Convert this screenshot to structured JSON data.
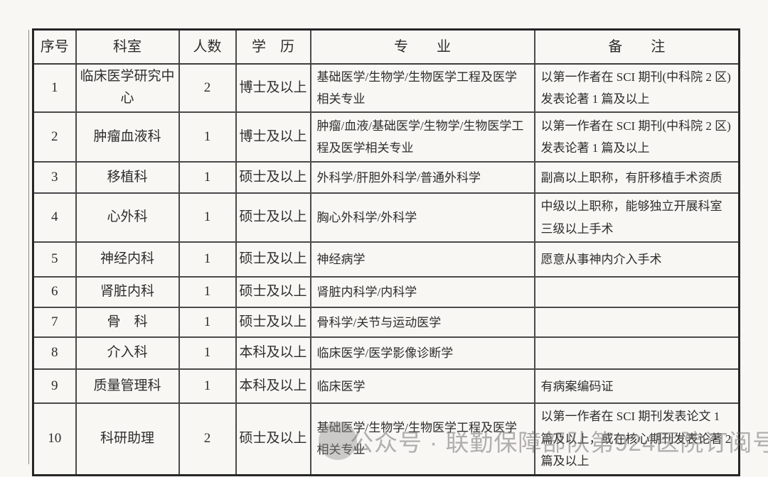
{
  "colors": {
    "paper": "#f9f7f4",
    "table_outer_border": "#262626",
    "grid_line": "#4a4a4a",
    "text": "#2e2d2b",
    "watermark_gray": "#ababab"
  },
  "table": {
    "columns": [
      {
        "key": "index",
        "label": "序号"
      },
      {
        "key": "department",
        "label": "科室"
      },
      {
        "key": "count",
        "label": "人数"
      },
      {
        "key": "education",
        "label": "学　历"
      },
      {
        "key": "major",
        "label": "专　　业"
      },
      {
        "key": "remark",
        "label": "备　　注"
      }
    ],
    "rows": [
      {
        "index": "1",
        "department": "临床医学研究中心",
        "count": "2",
        "education": "博士及以上",
        "major": "基础医学/生物学/生物医学工程及医学相关专业",
        "remark": "以第一作者在 SCI 期刊(中科院 2 区)发表论著 1 篇及以上"
      },
      {
        "index": "2",
        "department": "肿瘤血液科",
        "count": "1",
        "education": "博士及以上",
        "major": "肿瘤/血液/基础医学/生物学/生物医学工程及医学相关专业",
        "remark": "以第一作者在 SCI 期刊(中科院 2 区)发表论著 1 篇及以上"
      },
      {
        "index": "3",
        "department": "移植科",
        "count": "1",
        "education": "硕士及以上",
        "major": "外科学/肝胆外科学/普通外科学",
        "remark": "副高以上职称，有肝移植手术资质"
      },
      {
        "index": "4",
        "department": "心外科",
        "count": "1",
        "education": "硕士及以上",
        "major": "胸心外科学/外科学",
        "remark": "中级以上职称，能够独立开展科室三级以上手术"
      },
      {
        "index": "5",
        "department": "神经内科",
        "count": "1",
        "education": "硕士及以上",
        "major": "神经病学",
        "remark": "愿意从事神内介入手术"
      },
      {
        "index": "6",
        "department": "肾脏内科",
        "count": "1",
        "education": "硕士及以上",
        "major": "肾脏内科学/内科学",
        "remark": ""
      },
      {
        "index": "7",
        "department": "骨　科",
        "count": "1",
        "education": "硕士及以上",
        "major": "骨科学/关节与运动医学",
        "remark": ""
      },
      {
        "index": "8",
        "department": "介入科",
        "count": "1",
        "education": "本科及以上",
        "major": "临床医学/医学影像诊断学",
        "remark": ""
      },
      {
        "index": "9",
        "department": "质量管理科",
        "count": "1",
        "education": "本科及以上",
        "major": "临床医学",
        "remark": "有病案编码证"
      },
      {
        "index": "10",
        "department": "科研助理",
        "count": "2",
        "education": "硕士及以上",
        "major": "基础医学/生物学/生物医学工程及医学相关专业",
        "remark": "以第一作者在 SCI 期刊发表论文 1 篇及以上，或在核心期刊发表论著 2 篇及以上"
      }
    ]
  },
  "watermark": {
    "icon": "wechat-account-badge",
    "text": "公众号 · 联勤保障部队第924医院订阅号"
  }
}
